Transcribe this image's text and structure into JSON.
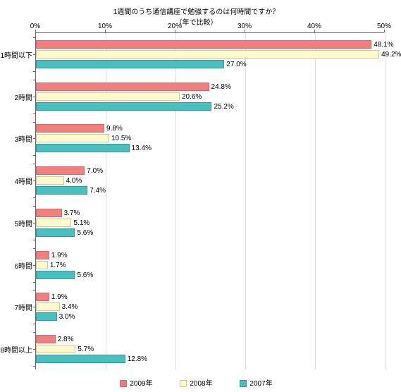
{
  "title_line1": "1週間のうち通信講座で勉強するのは何時間ですか？",
  "title_line2": "（年で比較）",
  "xaxis": {
    "min": 0,
    "max": 50,
    "ticks": [
      0,
      10,
      20,
      30,
      40,
      50
    ],
    "tick_labels": [
      "0%",
      "10%",
      "20%",
      "30%",
      "40%",
      "50%"
    ]
  },
  "categories": [
    "1時間以下",
    "2時間",
    "3時間",
    "4時間",
    "5時間",
    "6時間",
    "7時間",
    "8時間以上"
  ],
  "series": [
    {
      "name": "2009年",
      "class": "bar-2009",
      "values": [
        48.1,
        24.8,
        9.8,
        7.0,
        3.7,
        1.9,
        1.9,
        2.8
      ]
    },
    {
      "name": "2008年",
      "class": "bar-2008",
      "values": [
        49.2,
        20.6,
        10.5,
        4.0,
        5.1,
        1.7,
        3.4,
        5.7
      ]
    },
    {
      "name": "2007年",
      "class": "bar-2007",
      "values": [
        27.0,
        25.2,
        13.4,
        7.4,
        5.6,
        5.6,
        3.0,
        12.8
      ]
    }
  ],
  "legend": [
    "2009年",
    "2008年",
    "2007年"
  ],
  "legend_classes": [
    "bar-2009",
    "bar-2008",
    "bar-2007"
  ],
  "colors": {
    "2009": "#f08080",
    "2008": "#fffacd",
    "2007": "#48c0c0",
    "grid": "#dddddd",
    "axis": "#666666",
    "text": "#000000"
  }
}
